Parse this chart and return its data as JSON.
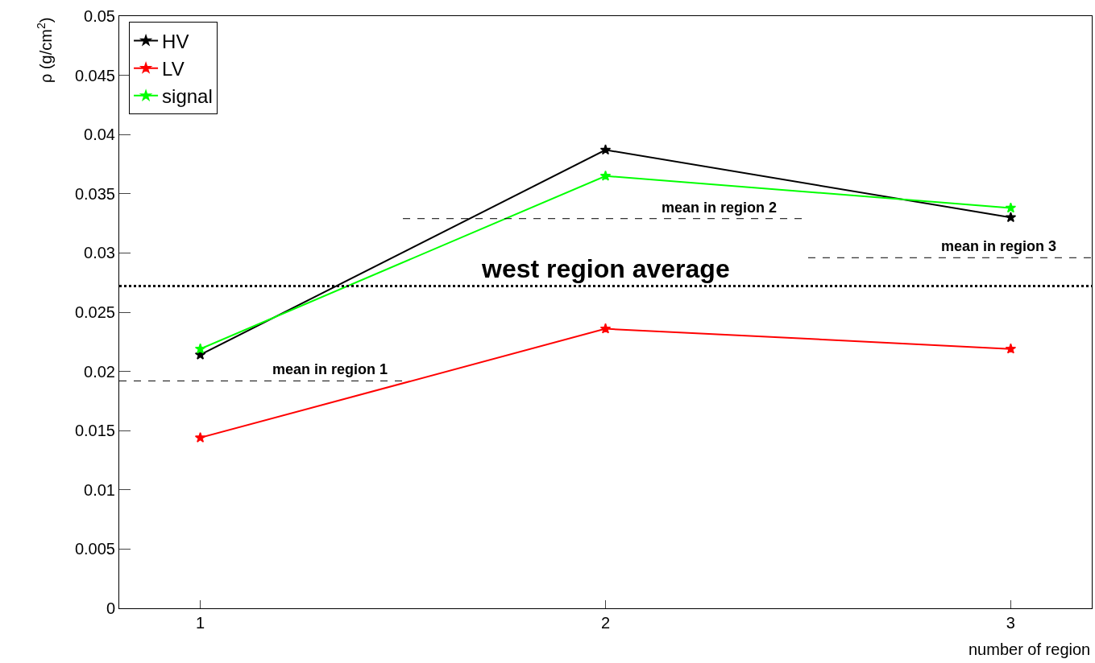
{
  "chart_data": {
    "type": "line",
    "xlabel": "number of region",
    "ylabel": "ρ (g/cm$^{2}$)",
    "x": [
      1,
      2,
      3
    ],
    "series": [
      {
        "name": "HV",
        "color": "#000000",
        "values": [
          0.0214,
          0.0387,
          0.033
        ]
      },
      {
        "name": "LV",
        "color": "#ff0000",
        "values": [
          0.0144,
          0.0236,
          0.0219
        ]
      },
      {
        "name": "signal",
        "color": "#00ff00",
        "values": [
          0.0219,
          0.0365,
          0.0338
        ]
      },
      {
        "color": "#000000",
        "x": [
          0.8,
          1.5
        ],
        "values": [
          0.0192,
          0.0192
        ],
        "line_style": "dashed",
        "marker": "none"
      },
      {
        "color": "#000000",
        "x": [
          1.5,
          2.49
        ],
        "values": [
          0.0329,
          0.0329
        ],
        "line_style": "dashed",
        "marker": "none"
      },
      {
        "color": "#000000",
        "x": [
          2.5,
          3.2
        ],
        "values": [
          0.0296,
          0.0296
        ],
        "line_style": "dashed",
        "marker": "none"
      }
    ],
    "ref_lines": [
      {
        "axis": "y",
        "value": 0.0272,
        "label": "west region average",
        "color": "#000000",
        "line_style": "dotted"
      }
    ],
    "annotations": [
      {
        "text": "mean in region 1",
        "x": 1.32,
        "y": 0.0192
      },
      {
        "text": "mean in region 2",
        "x": 2.28,
        "y": 0.0329
      },
      {
        "text": "mean in region 3",
        "x": 2.97,
        "y": 0.0296
      }
    ],
    "xlim": [
      0.8,
      3.2
    ],
    "xticks": [
      1,
      2,
      3
    ],
    "ylim": [
      0,
      0.05
    ],
    "yticks": [
      0,
      0.005,
      0.01,
      0.015,
      0.02,
      0.025,
      0.03,
      0.035,
      0.04,
      0.045,
      0.05
    ],
    "marker": "star",
    "line_style": "solid",
    "legend": "top left"
  }
}
